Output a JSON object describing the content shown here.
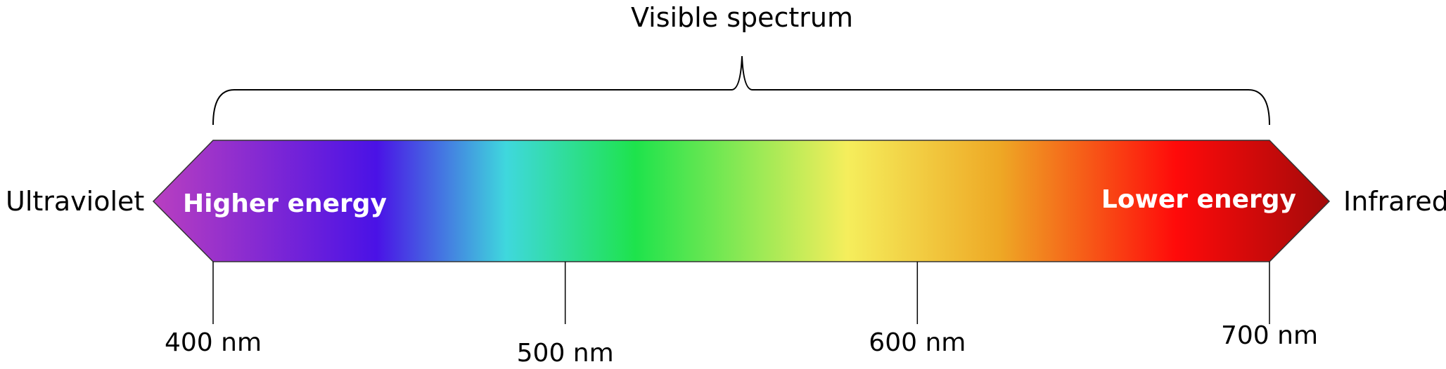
{
  "title": "Visible spectrum",
  "left_side_label": "Ultraviolet",
  "right_side_label": "Infrared",
  "left_energy_label": "Higher energy",
  "right_energy_label": "Lower energy",
  "ticks": [
    {
      "value": 400,
      "label": "400 nm"
    },
    {
      "value": 500,
      "label": "500 nm"
    },
    {
      "value": 600,
      "label": "600 nm"
    },
    {
      "value": 700,
      "label": "700 nm"
    }
  ],
  "colors": {
    "violet_magenta": "#b93fc0",
    "blue_violet": "#4a12e6",
    "cyan": "#3fd8dd",
    "green": "#1ee34c",
    "yellow": "#f5ee5c",
    "orange": "#eea825",
    "red": "#ff0a0a",
    "dark_red": "#a30a0a"
  }
}
